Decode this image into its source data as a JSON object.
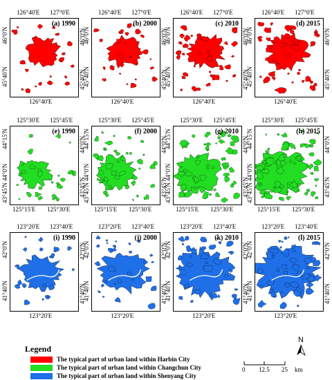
{
  "colors": {
    "harbin": "#ff0000",
    "changchun": "#22dd22",
    "shenyang": "#1f6fe8",
    "outline": "#000000"
  },
  "rows": [
    {
      "city": "harbin",
      "color": "#ff0000",
      "top_lons": [
        "126°40'E",
        "127°0'E"
      ],
      "bottom_lon": "126°40'E",
      "left_lats": [
        "46°0'N",
        "45°40'N"
      ],
      "right_lats": [
        "46°0'N",
        "45°40'N"
      ],
      "panels": [
        {
          "label": "(a) 1990",
          "level": 1
        },
        {
          "label": "(b) 2000",
          "level": 2
        },
        {
          "label": "(c) 2010",
          "level": 3
        },
        {
          "label": "(d) 2015",
          "level": 4
        }
      ]
    },
    {
      "city": "changchun",
      "color": "#22dd22",
      "top_lons": [
        "125°30'E",
        "125°45'E"
      ],
      "bottom_lons": [
        "125°15'E",
        "125°30'E"
      ],
      "left_lats": [
        "44°15'N",
        "44°0'N",
        "43°45'N"
      ],
      "right_lats": [
        "44°0'N",
        "43°45'N"
      ],
      "panels": [
        {
          "label": "(e) 1990",
          "level": 1
        },
        {
          "label": "(f) 2000",
          "level": 2
        },
        {
          "label": "(g) 2010",
          "level": 3
        },
        {
          "label": "(h) 2015",
          "level": 4
        }
      ]
    },
    {
      "city": "shenyang",
      "color": "#1f6fe8",
      "top_lons": [
        "123°20'E",
        "123°40'E"
      ],
      "bottom_lon": "123°20'E",
      "left_lats": [
        "42°0'N",
        "41°40'N"
      ],
      "right_lats": [
        "42°0'N",
        "41°40'N"
      ],
      "panels": [
        {
          "label": "(i) 1990",
          "level": 1
        },
        {
          "label": "(j) 2000",
          "level": 2
        },
        {
          "label": "(k) 2010",
          "level": 3
        },
        {
          "label": "(l) 2015",
          "level": 4
        }
      ]
    }
  ],
  "legend": {
    "title": "Legend",
    "items": [
      {
        "color": "#ff0000",
        "label": "The typical part of urban land within Harbin City"
      },
      {
        "color": "#22dd22",
        "label": "The typical part of urban land within Changchun City"
      },
      {
        "color": "#1f6fe8",
        "label": "The typical part of urban land within Shenyang City"
      }
    ]
  },
  "north_arrow": "N",
  "scale_bar": {
    "ticks": [
      "0",
      "12.5",
      "25"
    ],
    "unit": "km"
  }
}
